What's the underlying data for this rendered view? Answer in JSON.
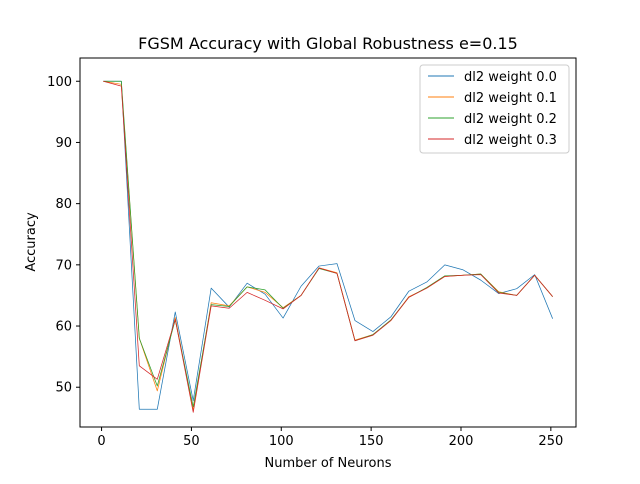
{
  "chart_data": {
    "type": "line",
    "title": "FGSM Accuracy with Global Robustness e=0.15",
    "xlabel": "Number of Neurons",
    "ylabel": "Accuracy",
    "xlim": [
      -12,
      264
    ],
    "ylim": [
      43.5,
      103.8
    ],
    "xticks": [
      0,
      50,
      100,
      150,
      200,
      250
    ],
    "yticks": [
      50,
      60,
      70,
      80,
      90,
      100
    ],
    "grid": false,
    "legend_position": "top-right",
    "x": [
      1,
      11,
      21,
      31,
      41,
      51,
      61,
      71,
      81,
      91,
      101,
      111,
      121,
      131,
      141,
      151,
      161,
      171,
      181,
      191,
      201,
      211,
      221,
      231,
      241,
      251
    ],
    "series": [
      {
        "name": "dl2 weight 0.0",
        "color": "#1f77b4",
        "values": [
          100,
          100,
          46.4,
          46.4,
          62.3,
          47.8,
          66.2,
          63.1,
          67.0,
          65.2,
          61.3,
          66.5,
          69.8,
          70.2,
          60.9,
          59.1,
          61.5,
          65.7,
          67.2,
          70.0,
          69.2,
          67.5,
          65.3,
          66.1,
          68.4,
          61.2
        ]
      },
      {
        "name": "dl2 weight 0.1",
        "color": "#ff7f0e",
        "values": [
          100,
          99.5,
          58.0,
          49.4,
          61.4,
          46.2,
          63.8,
          63.3,
          66.4,
          65.5,
          63.0,
          65.0,
          69.5,
          68.7,
          57.7,
          58.6,
          60.9,
          64.8,
          66.2,
          68.1,
          68.3,
          68.5,
          65.6,
          65.0,
          68.3,
          64.8
        ]
      },
      {
        "name": "dl2 weight 0.2",
        "color": "#2ca02c",
        "values": [
          100,
          100,
          58.0,
          50.2,
          61.0,
          46.8,
          63.5,
          63.2,
          66.4,
          65.9,
          62.9,
          65.0,
          69.4,
          68.6,
          57.6,
          58.6,
          61.0,
          64.7,
          66.3,
          68.2,
          68.3,
          68.5,
          65.5,
          65.0,
          68.3,
          64.8
        ]
      },
      {
        "name": "dl2 weight 0.3",
        "color": "#d62728",
        "values": [
          100,
          99.2,
          53.5,
          51.3,
          61.1,
          45.9,
          63.3,
          62.9,
          65.5,
          64.2,
          62.8,
          65.0,
          69.5,
          68.6,
          57.6,
          58.5,
          60.9,
          64.7,
          66.2,
          68.1,
          68.3,
          68.4,
          65.4,
          65.0,
          68.3,
          64.8
        ]
      }
    ]
  }
}
